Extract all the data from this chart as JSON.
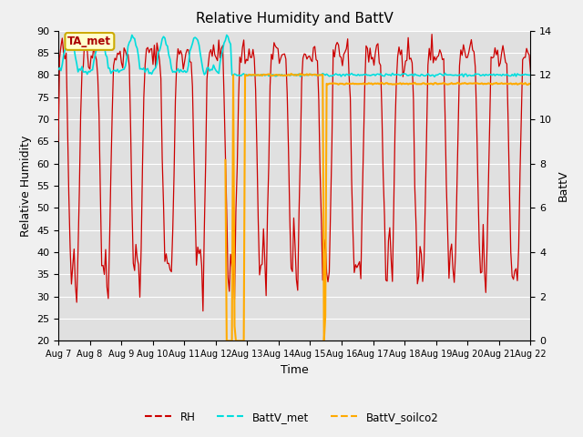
{
  "title": "Relative Humidity and BattV",
  "ylabel_left": "Relative Humidity",
  "ylabel_right": "BattV",
  "xlabel": "Time",
  "ylim_left": [
    20,
    90
  ],
  "ylim_right": [
    0,
    14
  ],
  "fig_bg_color": "#f0f0f0",
  "plot_bg_color": "#e0e0e0",
  "rh_color": "#cc0000",
  "battv_met_color": "#00dddd",
  "battv_soilco2_color": "#ffaa00",
  "annotation_text": "TA_met",
  "annotation_fg": "#aa0000",
  "annotation_bg": "#ffffcc",
  "annotation_edge": "#ccaa00",
  "grid_color": "#ffffff",
  "tick_label_dates": [
    "Aug 7",
    "Aug 8",
    "Aug 9",
    "Aug 10",
    "Aug 11",
    "Aug 12",
    "Aug 13",
    "Aug 14",
    "Aug 15",
    "Aug 16",
    "Aug 17",
    "Aug 18",
    "Aug 19",
    "Aug 20",
    "Aug 21",
    "Aug 22"
  ],
  "yticks_left": [
    20,
    25,
    30,
    35,
    40,
    45,
    50,
    55,
    60,
    65,
    70,
    75,
    80,
    85,
    90
  ],
  "yticks_right": [
    0,
    2,
    4,
    6,
    8,
    10,
    12,
    14
  ]
}
